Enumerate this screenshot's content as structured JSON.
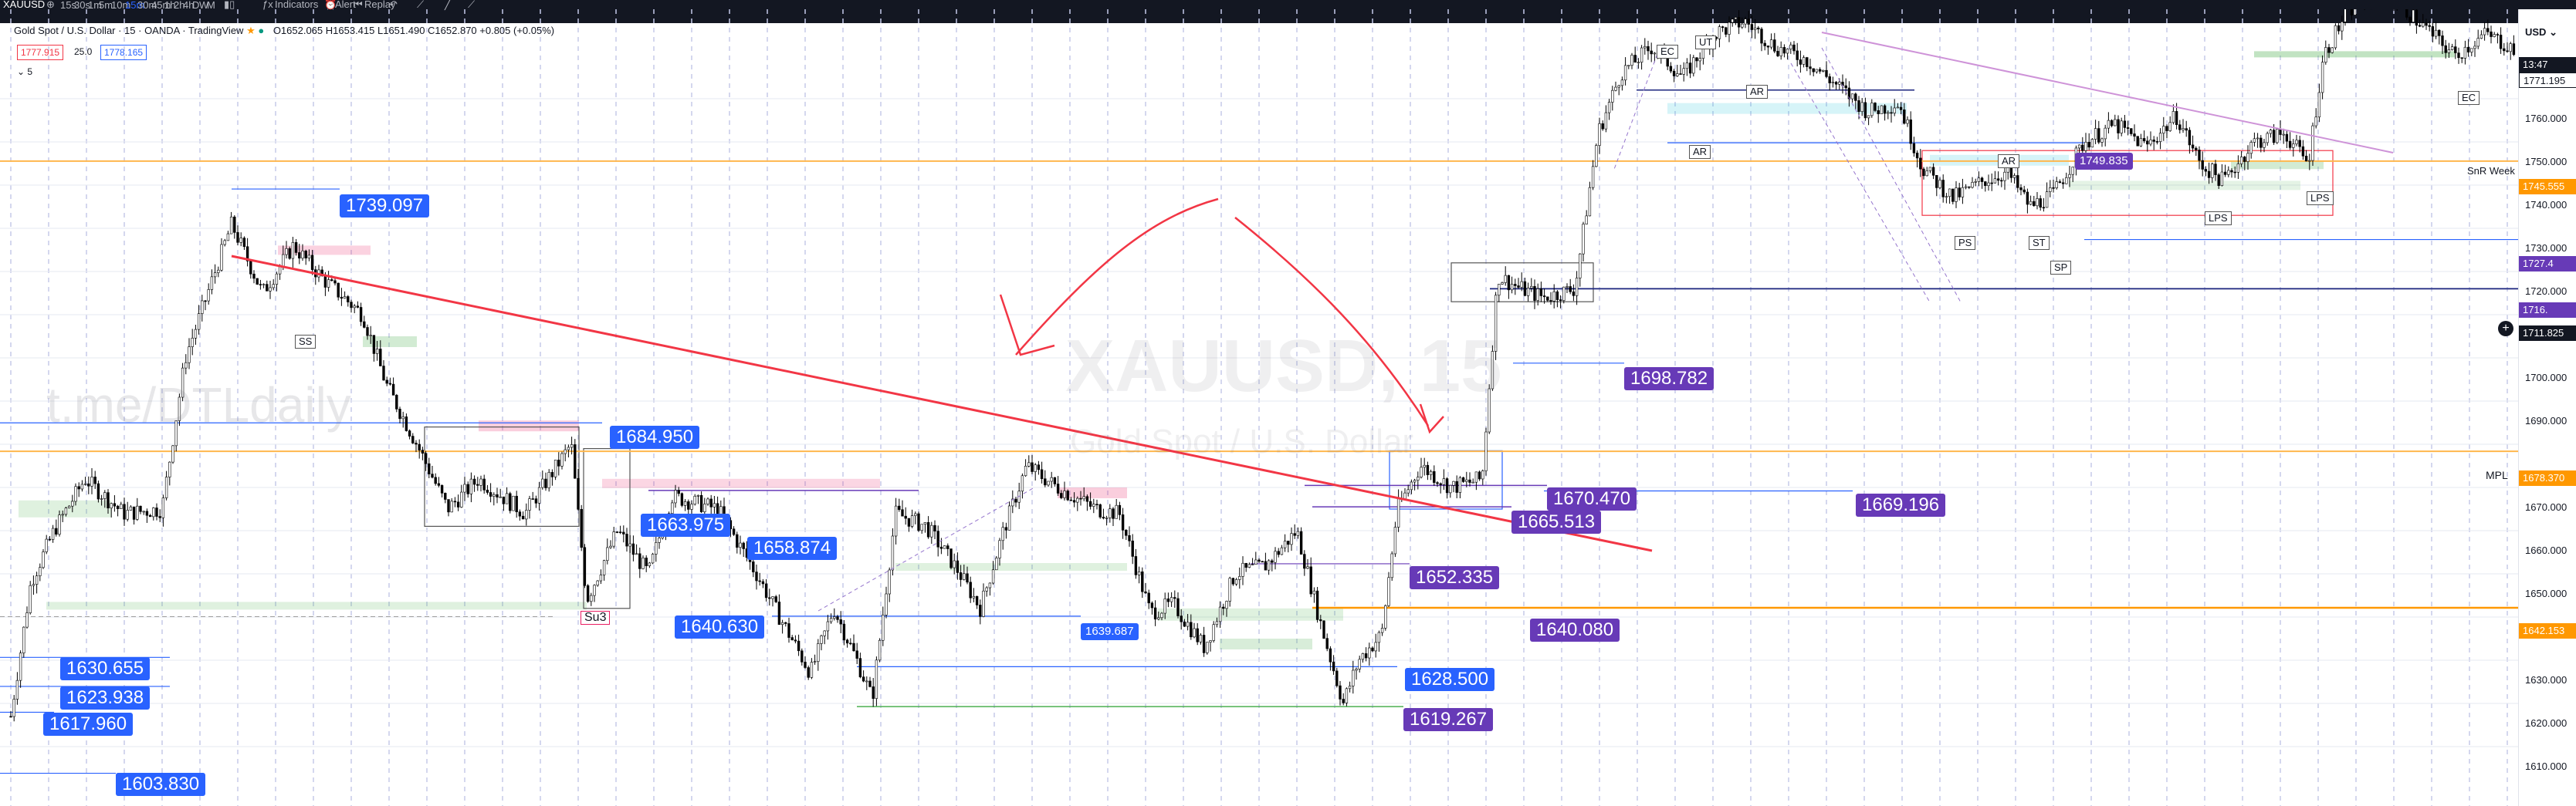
{
  "topbar": {
    "symbol": "XAUUSD",
    "timeframes": [
      "15s",
      "30s",
      "1m",
      "5m",
      "10m",
      "15m",
      "30m",
      "45m",
      "1h",
      "2h",
      "4h",
      "D",
      "W",
      "M"
    ],
    "active_timeframe": "15m",
    "indicators_label": "Indicators",
    "alert_label": "Alert",
    "replay_label": "Replay"
  },
  "legend": {
    "title": "Gold Spot / U.S. Dollar · 15 · OANDA · TradingView",
    "ohlc": "O1652.065  H1653.415  L1651.490  C1652.870  +0.805 (+0.05%)",
    "sell_price": "1777.915",
    "spread": "25.0",
    "buy_price": "1778.165",
    "collapse": "5"
  },
  "watermark": {
    "symbol": "XAUUSD, 15",
    "description": "Gold Spot / U.S. Dollar",
    "author": "t.me/DTLdaily"
  },
  "price_axis": {
    "currency": "USD",
    "ticks": [
      "1760.000",
      "1750.000",
      "1740.000",
      "1730.000",
      "1720.000",
      "1700.000",
      "1690.000",
      "1670.000",
      "1660.000",
      "1650.000",
      "1630.000",
      "1620.000",
      "1610.000"
    ],
    "badges": [
      {
        "text": "1771.195",
        "color": "#ffffff",
        "fg": "#131722"
      },
      {
        "text": "13:47",
        "color": "#131722",
        "fg": "#ffffff"
      },
      {
        "text": "1745.555",
        "color": "#ff9800",
        "fg": "#ffffff"
      },
      {
        "text": "1727.4",
        "color": "#673ab7",
        "fg": "#ffffff"
      },
      {
        "text": "1716.",
        "color": "#673ab7",
        "fg": "#ffffff"
      },
      {
        "text": "1711.825",
        "color": "#131722",
        "fg": "#ffffff"
      },
      {
        "text": "1678.370",
        "color": "#ff9800",
        "fg": "#ffffff"
      },
      {
        "text": "1642.153",
        "color": "#ff9800",
        "fg": "#ffffff"
      }
    ]
  },
  "levels": {
    "labels_blue": [
      "1739.097",
      "1684.950",
      "1663.975",
      "1658.874",
      "1640.630",
      "1630.655",
      "1623.938",
      "1617.960",
      "1603.830",
      "1628.500",
      "1639.687"
    ],
    "labels_purple": [
      "1698.782",
      "1670.470",
      "1665.513",
      "1669.196",
      "1652.335",
      "1640.080",
      "1619.267",
      "1749.835"
    ],
    "snr_week": "SnR Week",
    "mpl": "MPL",
    "su3": "Su3",
    "wyckoff": [
      "UT",
      "EC",
      "AR",
      "AR",
      "SS",
      "PS",
      "ST",
      "SP",
      "AR",
      "LPS",
      "LPS",
      "EC"
    ]
  },
  "colors": {
    "accent": "#2962ff",
    "purple": "#673ab7",
    "orange": "#ff9800",
    "red_drawing": "#f23645",
    "candles": "#000000"
  }
}
